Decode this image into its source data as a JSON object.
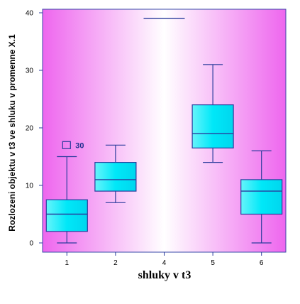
{
  "chart_data": {
    "type": "boxplot",
    "title": "",
    "xlabel": "shluky v t3",
    "ylabel": "Rozlozeni objektu v t3 ve shluku v promenne X.1",
    "ylim": [
      0,
      40
    ],
    "yticks": [
      0,
      10,
      20,
      30,
      40
    ],
    "categories": [
      "1",
      "2",
      "4",
      "5",
      "6"
    ],
    "boxes": [
      {
        "category": "1",
        "min": 0,
        "q1": 2,
        "median": 5,
        "q3": 7.5,
        "max": 15,
        "outliers": [
          {
            "value": 17,
            "label": "30"
          }
        ]
      },
      {
        "category": "2",
        "min": 7,
        "q1": 9,
        "median": 11,
        "q3": 14,
        "max": 17,
        "outliers": []
      },
      {
        "category": "4",
        "min": 39,
        "q1": 39,
        "median": 39,
        "q3": 39,
        "max": 39,
        "outliers": []
      },
      {
        "category": "5",
        "min": 14,
        "q1": 16.5,
        "median": 19,
        "q3": 24,
        "max": 31,
        "outliers": []
      },
      {
        "category": "6",
        "min": 0,
        "q1": 5,
        "median": 9,
        "q3": 11,
        "max": 16,
        "outliers": []
      }
    ],
    "grid": false,
    "legend": "none",
    "colors": {
      "box_fill": "#00e8f8",
      "box_stroke": "#2a3c9c",
      "background_edge": "#ee66ee",
      "background_center": "#ffffff"
    }
  }
}
